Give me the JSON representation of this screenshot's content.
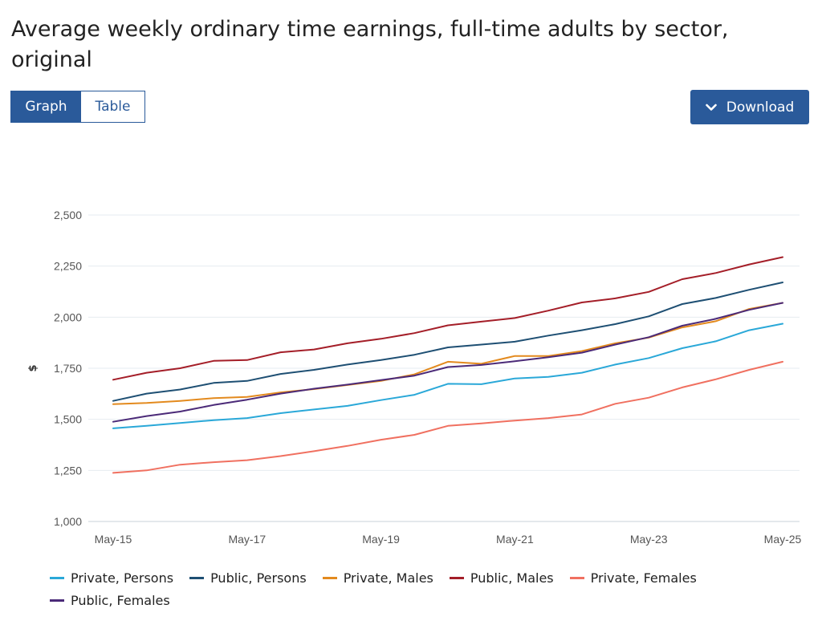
{
  "header": {
    "title": "Average weekly ordinary time earnings, full-time adults by sector, original"
  },
  "view_toggle": {
    "graph_label": "Graph",
    "table_label": "Table",
    "active": "Graph"
  },
  "download": {
    "label": "Download"
  },
  "colors": {
    "accent": "#2a5a9a"
  },
  "chart_data": {
    "type": "line",
    "ylabel": "$",
    "ylim": [
      1000,
      2500
    ],
    "yticks": [
      1000,
      1250,
      1500,
      1750,
      2000,
      2250,
      2500
    ],
    "ytick_labels": [
      "1,000",
      "1,250",
      "1,500",
      "1,750",
      "2,000",
      "2,250",
      "2,500"
    ],
    "x": [
      "May-15",
      "Nov-15",
      "May-16",
      "Nov-16",
      "May-17",
      "Nov-17",
      "May-18",
      "Nov-18",
      "May-19",
      "Nov-19",
      "May-20",
      "Nov-20",
      "May-21",
      "Nov-21",
      "May-22",
      "Nov-22",
      "May-23",
      "Nov-23",
      "May-24",
      "Nov-24",
      "May-25"
    ],
    "xtick_labels": [
      "May-15",
      "May-17",
      "May-19",
      "May-21",
      "May-23",
      "May-25"
    ],
    "grid": true,
    "legend_position": "bottom",
    "series": [
      {
        "name": "Private, Persons",
        "color": "#2aa8d8",
        "values": [
          1456,
          1468,
          1482,
          1496,
          1506,
          1530,
          1548,
          1566,
          1594,
          1620,
          1674,
          1672,
          1700,
          1708,
          1728,
          1768,
          1800,
          1848,
          1882,
          1936,
          1968
        ]
      },
      {
        "name": "Public, Persons",
        "color": "#1e4f73",
        "values": [
          1590,
          1626,
          1646,
          1678,
          1688,
          1722,
          1742,
          1768,
          1790,
          1816,
          1852,
          1866,
          1880,
          1910,
          1936,
          1966,
          2004,
          2064,
          2094,
          2134,
          2170
        ]
      },
      {
        "name": "Private, Males",
        "color": "#e38a1e",
        "values": [
          1574,
          1580,
          1590,
          1604,
          1610,
          1632,
          1648,
          1668,
          1688,
          1720,
          1782,
          1772,
          1810,
          1810,
          1834,
          1872,
          1900,
          1950,
          1980,
          2040,
          2070
        ]
      },
      {
        "name": "Public, Males",
        "color": "#a41e28",
        "values": [
          1694,
          1728,
          1750,
          1786,
          1790,
          1828,
          1842,
          1872,
          1894,
          1922,
          1960,
          1978,
          1996,
          2032,
          2072,
          2092,
          2124,
          2186,
          2216,
          2258,
          2294
        ]
      },
      {
        "name": "Private, Females",
        "color": "#f07060",
        "values": [
          1238,
          1250,
          1278,
          1290,
          1300,
          1320,
          1344,
          1370,
          1400,
          1424,
          1468,
          1480,
          1494,
          1506,
          1524,
          1576,
          1606,
          1656,
          1696,
          1742,
          1782
        ]
      },
      {
        "name": "Public, Females",
        "color": "#4b2a78",
        "values": [
          1488,
          1516,
          1538,
          1570,
          1596,
          1626,
          1650,
          1670,
          1692,
          1714,
          1756,
          1766,
          1784,
          1804,
          1826,
          1866,
          1902,
          1958,
          1992,
          2036,
          2070
        ]
      }
    ]
  }
}
